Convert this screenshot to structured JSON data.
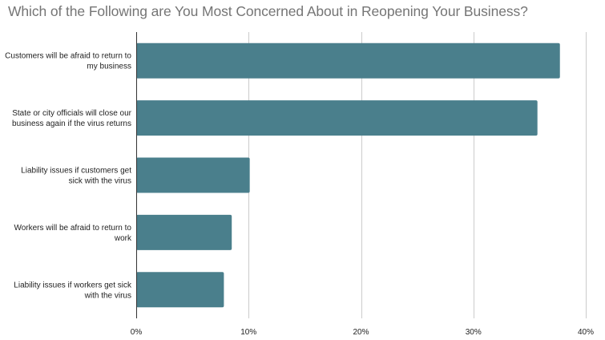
{
  "chart_data": {
    "type": "bar",
    "orientation": "horizontal",
    "title": "Which of the Following are You Most Concerned About in Reopening Your Business?",
    "categories": [
      [
        "Customers will be afraid to return to",
        "my business"
      ],
      [
        "State or city officials will close our",
        "business again if the virus returns"
      ],
      [
        "Liability issues if customers get",
        "sick with the virus"
      ],
      [
        "Workers will be afraid to return to",
        "work"
      ],
      [
        "Liability issues if workers get sick",
        "with the virus"
      ]
    ],
    "values": [
      37.7,
      35.7,
      10.1,
      8.5,
      7.8
    ],
    "xlim": [
      0,
      40
    ],
    "x_ticks": [
      0,
      10,
      20,
      30,
      40
    ],
    "x_tick_labels": [
      "0%",
      "10%",
      "20%",
      "30%",
      "40%"
    ],
    "xlabel": "",
    "ylabel": "",
    "grid": true,
    "legend": "none",
    "bar_color": "#4a7f8c",
    "grid_color": "#cccccc",
    "axis_color": "#333333"
  }
}
